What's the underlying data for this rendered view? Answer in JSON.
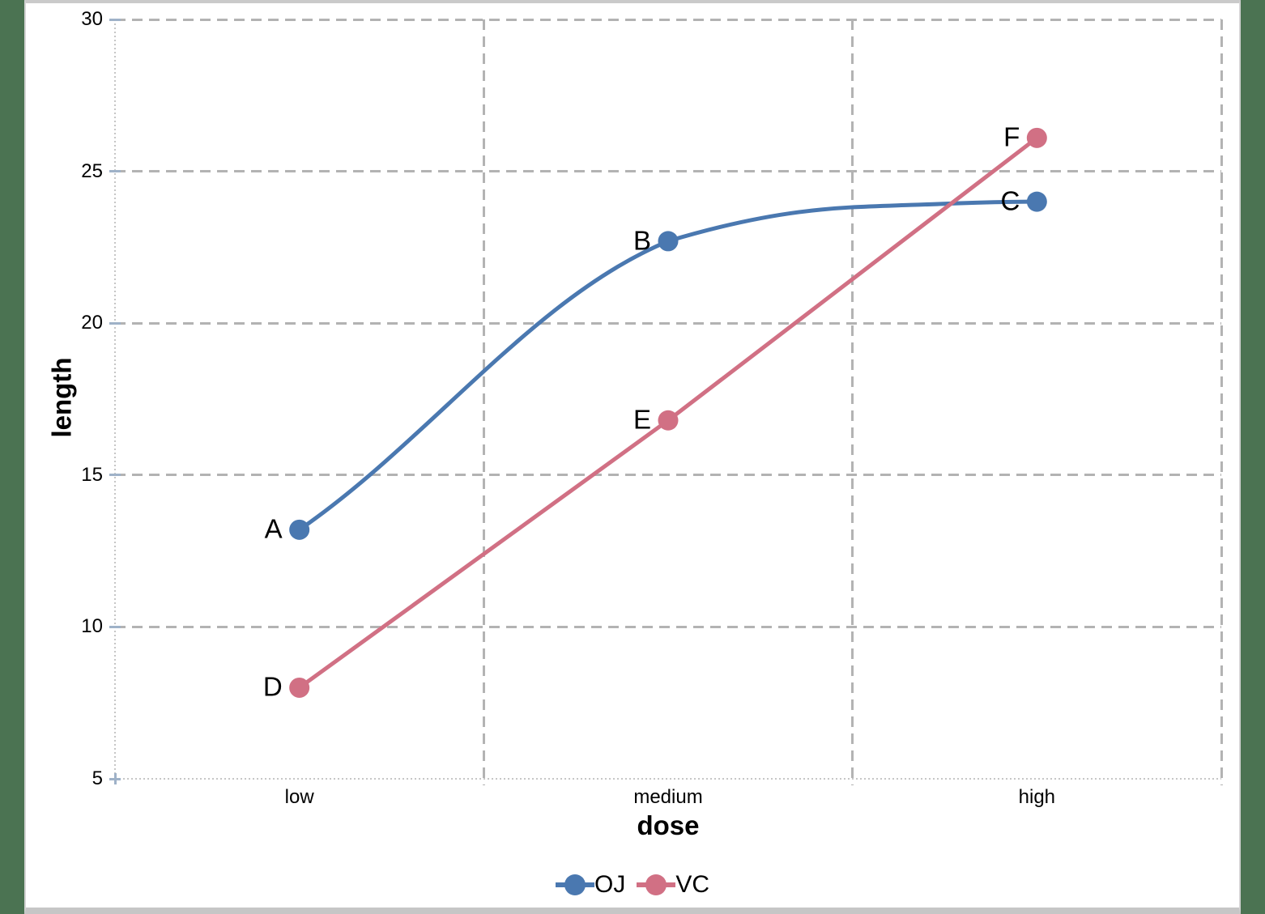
{
  "chart_data": {
    "type": "line",
    "categories": [
      "low",
      "medium",
      "high"
    ],
    "series": [
      {
        "name": "OJ",
        "values": [
          13.2,
          22.7,
          24.0
        ],
        "color": "#4A78B0",
        "smooth": true,
        "point_labels": [
          "A",
          "B",
          "C"
        ]
      },
      {
        "name": "VC",
        "values": [
          8.0,
          16.8,
          26.1
        ],
        "color": "#D17084",
        "smooth": false,
        "point_labels": [
          "D",
          "E",
          "F"
        ]
      }
    ],
    "xlabel": "dose",
    "ylabel": "length",
    "ylim": [
      5,
      30
    ],
    "yticks": [
      5,
      10,
      15,
      20,
      25,
      30
    ],
    "grid": "dashed",
    "legend_position": "bottom",
    "legend_labels": [
      "OJ",
      "VC"
    ]
  },
  "colors": {
    "background_green": "#4B7352",
    "page_white": "#FFFFFF",
    "frame_gray": "#C9C9C9",
    "gridline_gray": "#B3B3B3",
    "axis_dotted_gray": "#C6C6C6",
    "tick_blue_gray": "#9FB2C8",
    "text_black": "#000000"
  }
}
